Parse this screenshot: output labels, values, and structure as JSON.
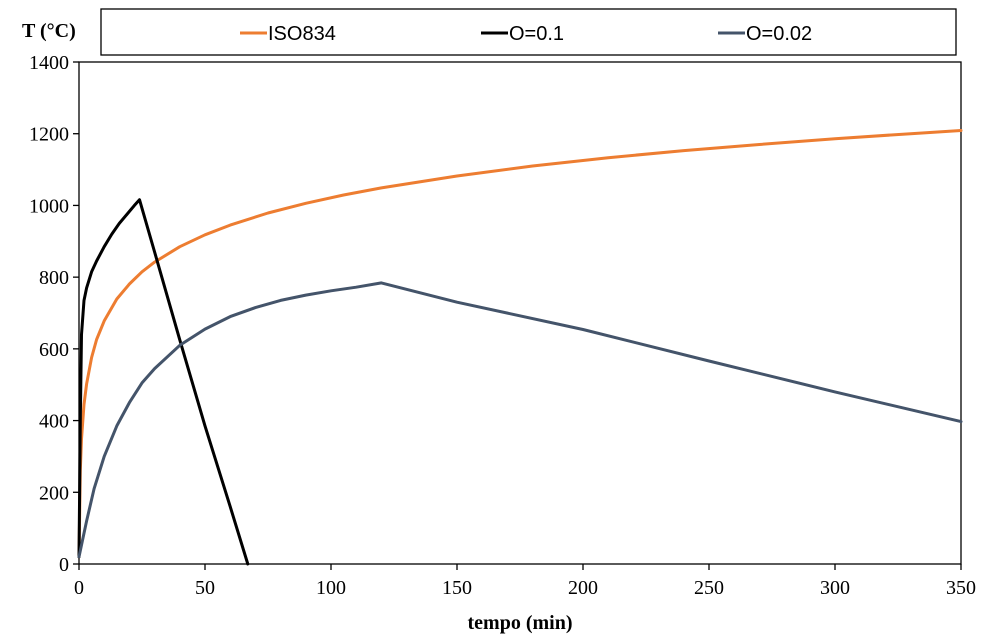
{
  "chart_data": {
    "type": "line",
    "title": "",
    "xlabel": "tempo (min)",
    "ylabel": "T (°C)",
    "xlim": [
      0,
      350
    ],
    "ylim": [
      0,
      1400
    ],
    "x_ticks": [
      0,
      50,
      100,
      150,
      200,
      250,
      300,
      350
    ],
    "y_ticks": [
      0,
      200,
      400,
      600,
      800,
      1000,
      1200,
      1400
    ],
    "grid": false,
    "legend_position": "top",
    "series": [
      {
        "name": "ISO834",
        "color": "#ED7D31",
        "x": [
          0,
          0.5,
          1,
          2,
          3,
          5,
          7,
          10,
          15,
          20,
          25,
          30,
          40,
          50,
          60,
          75,
          90,
          105,
          120,
          150,
          180,
          210,
          240,
          270,
          300,
          330,
          350
        ],
        "y": [
          20,
          261,
          349,
          445,
          502,
          576,
          626,
          678,
          739,
          781,
          815,
          842,
          885,
          918,
          945,
          979,
          1006,
          1029,
          1049,
          1082,
          1110,
          1133,
          1153,
          1170,
          1186,
          1200,
          1209
        ]
      },
      {
        "name": "O=0.1",
        "color": "#000000",
        "x": [
          0,
          0.5,
          1,
          2,
          3,
          5,
          7,
          10,
          13,
          16,
          19,
          22,
          24,
          30,
          40,
          50,
          60,
          67
        ],
        "y": [
          20,
          400,
          640,
          735,
          770,
          815,
          845,
          885,
          920,
          950,
          975,
          1000,
          1016,
          870,
          625,
          385,
          160,
          0
        ]
      },
      {
        "name": "O=0.02",
        "color": "#44546A",
        "x": [
          0,
          3,
          6,
          10,
          15,
          20,
          25,
          30,
          40,
          50,
          60,
          70,
          80,
          90,
          100,
          110,
          120,
          150,
          200,
          250,
          300,
          350
        ],
        "y": [
          20,
          120,
          210,
          300,
          385,
          450,
          505,
          545,
          610,
          655,
          690,
          715,
          735,
          750,
          762,
          772,
          784,
          730,
          654,
          566,
          480,
          397
        ]
      }
    ]
  }
}
